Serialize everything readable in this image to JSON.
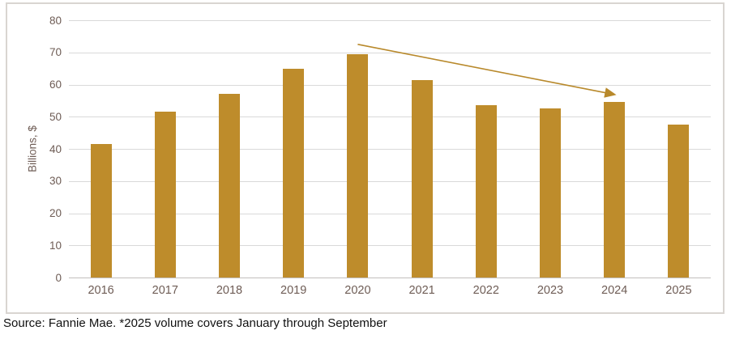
{
  "chart_data": {
    "type": "bar",
    "categories": [
      "2016",
      "2017",
      "2018",
      "2019",
      "2020",
      "2021",
      "2022",
      "2023",
      "2024",
      "2025"
    ],
    "values": [
      41.5,
      51.5,
      57,
      65,
      69.5,
      61.5,
      53.5,
      52.5,
      54.5,
      47.5
    ],
    "title": "",
    "xlabel": "",
    "ylabel": "Billions, $",
    "ylim": [
      0,
      80
    ],
    "yticks": [
      0,
      10,
      20,
      30,
      40,
      50,
      60,
      70,
      80
    ],
    "grid": true,
    "legend": "none",
    "bar_color": "#BE8C2B",
    "axis_label_color": "#6e5c55",
    "gridline_color": "#d9d9d9",
    "annotation": {
      "type": "arrow",
      "description": "downward trend arrow from above 2020 bar to above 2024 bar",
      "color": "#B8892B",
      "from_category": "2020",
      "from_value": 72.5,
      "to_category": "2024",
      "to_value": 56.9
    }
  },
  "footer": {
    "source_note": "Source: Fannie Mae. *2025 volume covers January through September"
  }
}
